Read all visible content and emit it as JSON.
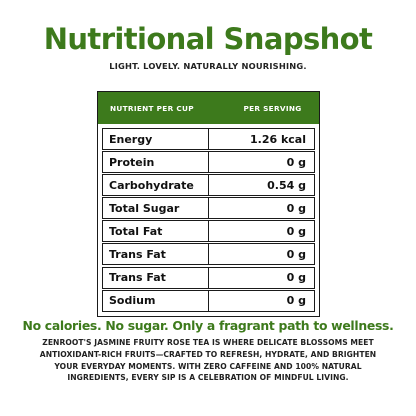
{
  "header": {
    "title": "Nutritional Snapshot",
    "subtitle": "LIGHT. LOVELY. NATURALLY NOURISHING."
  },
  "table": {
    "col_nutrient": "NUTRIENT PER CUP",
    "col_serving": "PER SERVING",
    "rows": [
      {
        "name": "Energy",
        "value": "1.26 kcal"
      },
      {
        "name": "Protein",
        "value": "0 g"
      },
      {
        "name": "Carbohydrate",
        "value": "0.54 g"
      },
      {
        "name": "Total Sugar",
        "value": "0 g"
      },
      {
        "name": "Total Fat",
        "value": "0 g"
      },
      {
        "name": "Trans Fat",
        "value": "0 g"
      },
      {
        "name": "Trans Fat",
        "value": "0 g"
      },
      {
        "name": "Sodium",
        "value": "0 g"
      }
    ]
  },
  "footer": {
    "tagline": "No calories. No sugar. Only a fragrant path to wellness.",
    "description": "ZENROOT'S JASMINE FRUITY ROSE TEA IS WHERE DELICATE BLOSSOMS MEET ANTIOXIDANT-RICH FRUITS—CRAFTED TO REFRESH, HYDRATE, AND BRIGHTEN YOUR EVERYDAY MOMENTS. WITH ZERO CAFFEINE AND 100% NATURAL INGREDIENTS, EVERY SIP IS A CELEBRATION OF MINDFUL LIVING."
  },
  "colors": {
    "brand_green": "#3d7a1c",
    "text_dark": "#111111"
  }
}
